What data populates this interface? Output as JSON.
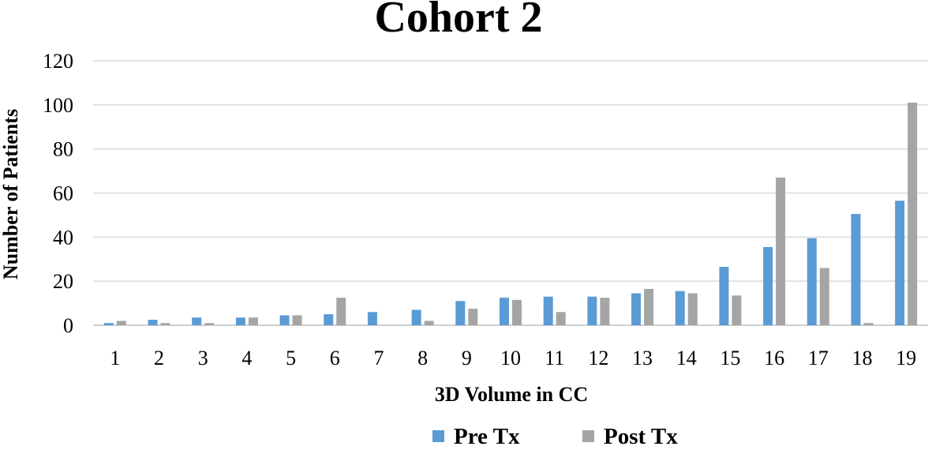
{
  "chart_data": {
    "type": "bar",
    "title": "Cohort 2",
    "xlabel": "3D Volume in CC",
    "ylabel": "Number of Patients",
    "ylim": [
      0,
      120
    ],
    "yticks": [
      "0",
      "20",
      "40",
      "60",
      "80",
      "100",
      "120"
    ],
    "grid": true,
    "legend_position": "bottom",
    "categories": [
      "1",
      "2",
      "3",
      "4",
      "5",
      "6",
      "7",
      "8",
      "9",
      "10",
      "11",
      "12",
      "13",
      "14",
      "15",
      "16",
      "17",
      "18",
      "19"
    ],
    "series": [
      {
        "name": "Pre Tx",
        "color": "#5B9BD5",
        "values": [
          1,
          2.5,
          3.5,
          3.5,
          4.5,
          5,
          6,
          7,
          11,
          12.5,
          13,
          13,
          14.5,
          15.5,
          26.5,
          35.5,
          39.5,
          50.5,
          56.5
        ]
      },
      {
        "name": "Post Tx",
        "color": "#A5A5A5",
        "values": [
          2,
          1,
          1,
          3.5,
          4.5,
          12.5,
          0,
          2,
          7.5,
          11.5,
          6,
          12.5,
          16.5,
          14.5,
          13.5,
          67,
          26,
          1,
          101
        ]
      }
    ]
  }
}
